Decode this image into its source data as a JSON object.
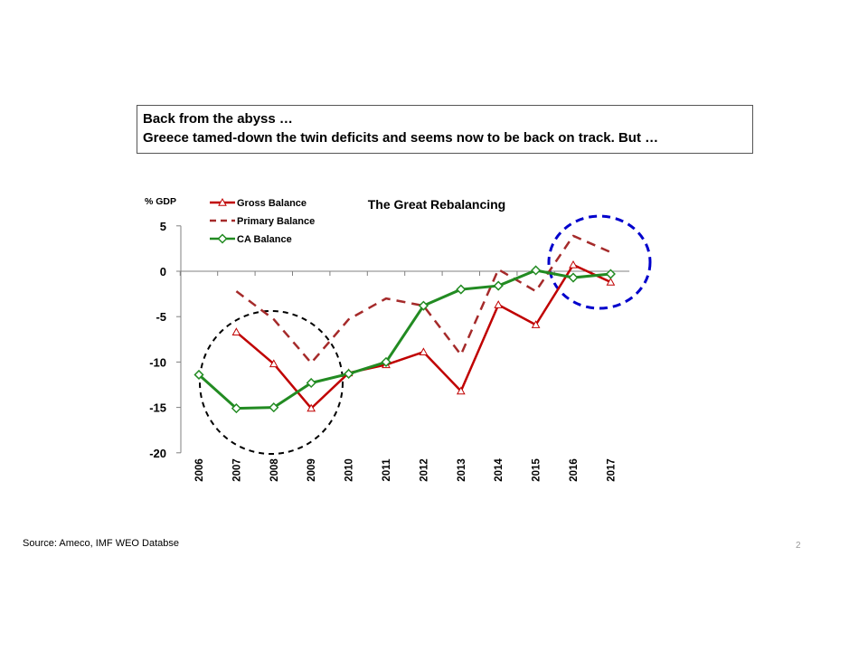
{
  "headline": {
    "line1": "Back from the abyss …",
    "line2": "Greece tamed-down the twin deficits and seems now to be back on track. But …"
  },
  "source": "Source: Ameco, IMF WEO Databse",
  "page_number": "2",
  "colors": {
    "gross": "#c00000",
    "primary": "#a52a2a",
    "ca": "#228b22",
    "circle_black": "#000000",
    "circle_blue": "#0000cc"
  },
  "chart_data": {
    "type": "line",
    "title": "The Great Rebalancing",
    "ylabel": "% GDP",
    "xlabel": "",
    "ylim": [
      -20,
      5
    ],
    "yticks": [
      5,
      0,
      -5,
      -10,
      -15,
      -20
    ],
    "ytick_labels": [
      "5",
      "0",
      "-5",
      "-10",
      "-15",
      "-20"
    ],
    "categories": [
      "2006",
      "2007",
      "2008",
      "2009",
      "2010",
      "2011",
      "2012",
      "2013",
      "2014",
      "2015",
      "2016",
      "2017"
    ],
    "legend_position": "top-left",
    "grid": false,
    "series": [
      {
        "name": "Gross Balance",
        "style": "solid",
        "marker": "triangle",
        "values": [
          null,
          -6.7,
          -10.2,
          -15.1,
          -11.2,
          -10.3,
          -8.9,
          -13.2,
          -3.7,
          -5.9,
          0.7,
          -1.2
        ]
      },
      {
        "name": "Primary Balance",
        "style": "dashed",
        "marker": "none",
        "values": [
          null,
          -2.2,
          -5.3,
          -10.1,
          -5.3,
          -3.0,
          -3.8,
          -9.2,
          0.2,
          -2.2,
          3.9,
          2.1
        ]
      },
      {
        "name": "CA Balance",
        "style": "solid",
        "marker": "diamond",
        "values": [
          -11.4,
          -15.1,
          -15.0,
          -12.3,
          -11.3,
          -10.0,
          -3.8,
          -2.0,
          -1.6,
          0.1,
          -0.7,
          -0.3
        ]
      }
    ]
  }
}
